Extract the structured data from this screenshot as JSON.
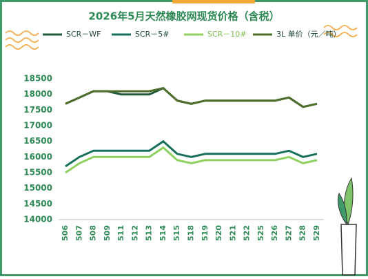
{
  "chart_data": {
    "type": "line",
    "title": "2026年5月天然橡胶网现货价格（含税）",
    "categories": [
      "506",
      "507",
      "508",
      "509",
      "511",
      "512",
      "513",
      "514",
      "515",
      "518",
      "519",
      "520",
      "521",
      "522",
      "525",
      "526",
      "527",
      "528",
      "529"
    ],
    "series": [
      {
        "name": "SCR－WF",
        "color": "#1f5a3a",
        "values": [
          17700,
          17900,
          18100,
          18100,
          18000,
          18000,
          18000,
          18200,
          17800,
          17700,
          17800,
          17800,
          17800,
          17800,
          17800,
          17800,
          17900,
          17600,
          17700
        ]
      },
      {
        "name": "SCR－5#",
        "color": "#17705a",
        "values": [
          15700,
          16000,
          16200,
          16200,
          16200,
          16200,
          16200,
          16500,
          16100,
          16000,
          16100,
          16100,
          16100,
          16100,
          16100,
          16100,
          16200,
          16000,
          16100
        ]
      },
      {
        "name": "SCR－10#",
        "color": "#8fd060",
        "values": [
          15500,
          15800,
          16000,
          16000,
          16000,
          16000,
          16000,
          16300,
          15900,
          15800,
          15900,
          15900,
          15900,
          15900,
          15900,
          15900,
          16000,
          15800,
          15900
        ]
      },
      {
        "name": "3L 单价（元／吨）",
        "color": "#4f6e2c",
        "values": [
          17700,
          17900,
          18100,
          18100,
          18100,
          18100,
          18100,
          18200,
          17800,
          17700,
          17800,
          17800,
          17800,
          17800,
          17800,
          17800,
          17900,
          17600,
          17700
        ]
      }
    ],
    "ylim": [
      14000,
      18500
    ],
    "yticks": [
      14000,
      14500,
      15000,
      15500,
      16000,
      16500,
      17000,
      17500,
      18000,
      18500
    ],
    "grid": false
  }
}
